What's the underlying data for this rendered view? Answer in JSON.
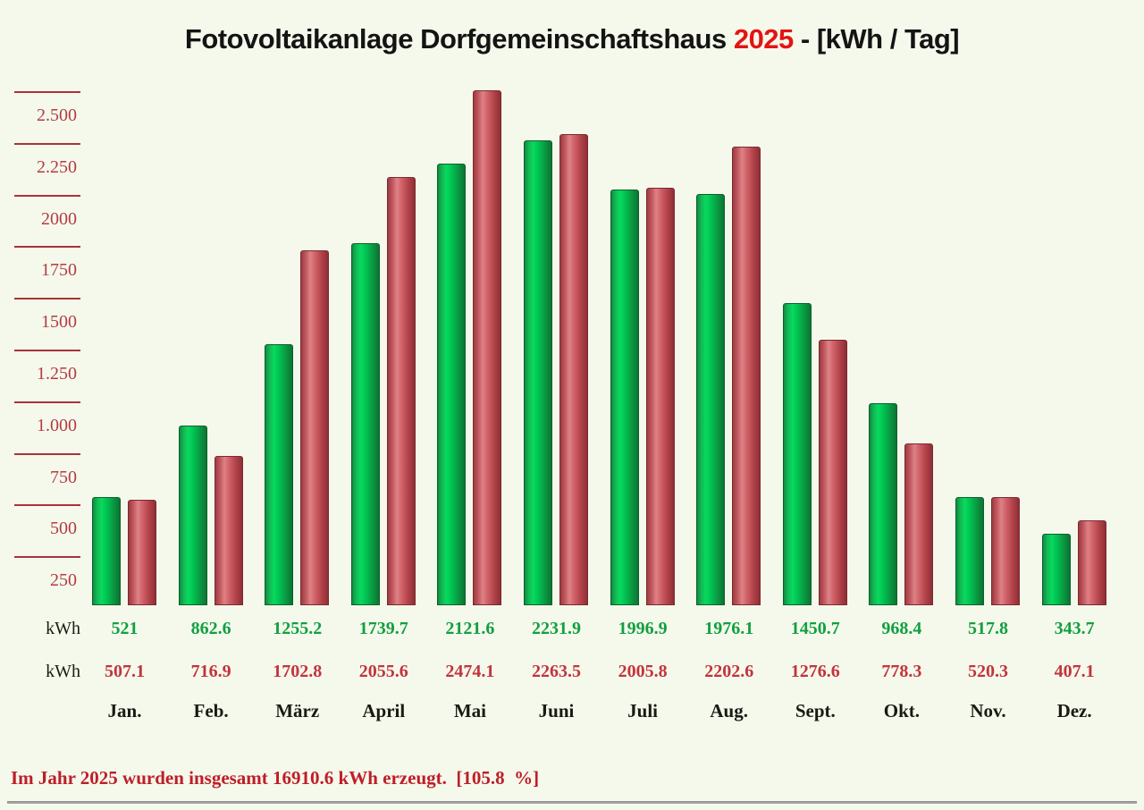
{
  "title": {
    "part1": "Fotovoltaikanlage Dorfgemeinschaftshaus ",
    "year": "2025",
    "part2": " - [kWh / Tag]"
  },
  "y_axis": {
    "ticks": [
      {
        "label": "2.500",
        "value": 2500
      },
      {
        "label": "2.250",
        "value": 2250
      },
      {
        "label": "2000",
        "value": 2000
      },
      {
        "label": "1750",
        "value": 1750
      },
      {
        "label": "1500",
        "value": 1500
      },
      {
        "label": "1.250",
        "value": 1250
      },
      {
        "label": "1.000",
        "value": 1000
      },
      {
        "label": "750",
        "value": 750
      },
      {
        "label": "500",
        "value": 500
      },
      {
        "label": "250",
        "value": 250
      }
    ]
  },
  "units": {
    "green": "kWh",
    "red": "kWh"
  },
  "chart_data": {
    "type": "bar",
    "title": "Fotovoltaikanlage Dorfgemeinschaftshaus 2025 - [kWh / Tag]",
    "unit": "kWh",
    "categories": [
      "Jan.",
      "Feb.",
      "März",
      "April",
      "Mai",
      "Juni",
      "Juli",
      "Aug.",
      "Sept.",
      "Okt.",
      "Nov.",
      "Dez."
    ],
    "series": [
      {
        "name": "green",
        "color": "#0fae4d",
        "values": [
          521,
          862.6,
          1255.2,
          1739.7,
          2121.6,
          2231.9,
          1996.9,
          1976.1,
          1450.7,
          968.4,
          517.8,
          343.7
        ]
      },
      {
        "name": "red",
        "color": "#c4454c",
        "values": [
          507.1,
          716.9,
          1702.8,
          2055.6,
          2474.1,
          2263.5,
          2005.8,
          2202.6,
          1276.6,
          778.3,
          520.3,
          407.1
        ]
      }
    ],
    "ylim": [
      0,
      2600
    ],
    "grid": "horizontal-ticks-left-only",
    "legend": "none"
  },
  "summary": {
    "text": "Im Jahr 2025 wurden insgesamt 16910.6 kWh erzeugt.  [105.8  %]"
  },
  "colors": {
    "background": "#f5f9ec",
    "title_text": "#141414",
    "title_year": "#e41414",
    "axis_red": "#a8343a",
    "value_green": "#12a041",
    "value_red": "#c2343c",
    "summary_red": "#bf1e28"
  }
}
